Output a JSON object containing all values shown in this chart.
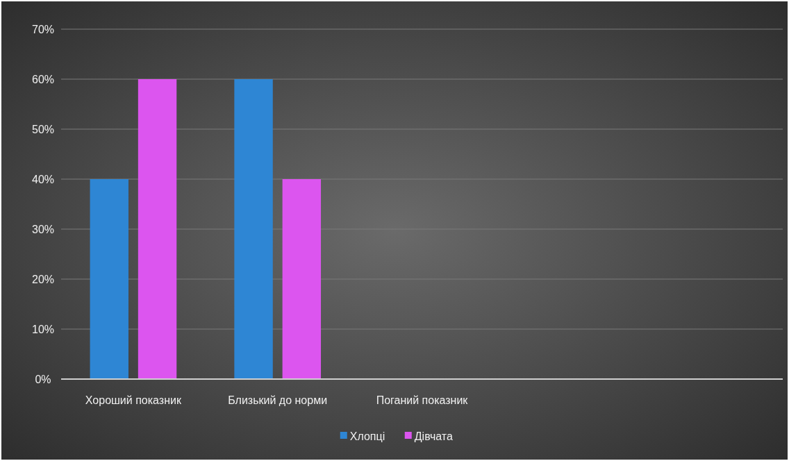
{
  "chart_data": {
    "type": "bar",
    "categories": [
      "Хороший показник",
      "Близький до норми",
      "Поганий показник",
      null,
      null
    ],
    "series": [
      {
        "name": "Хлопці",
        "color": "#2e86d4",
        "values": [
          40,
          60,
          null,
          null,
          null
        ]
      },
      {
        "name": "Дівчата",
        "color": "#dc55ef",
        "values": [
          60,
          40,
          null,
          null,
          null
        ]
      }
    ],
    "ylim": [
      0,
      70
    ],
    "yticks": [
      {
        "value": 0,
        "label": "0%"
      },
      {
        "value": 10,
        "label": "10%"
      },
      {
        "value": 20,
        "label": "20%"
      },
      {
        "value": 30,
        "label": "30%"
      },
      {
        "value": 40,
        "label": "40%"
      },
      {
        "value": 50,
        "label": "50%"
      },
      {
        "value": 60,
        "label": "60%"
      },
      {
        "value": 70,
        "label": "70%"
      }
    ],
    "grid": "y",
    "legend": "bottom"
  }
}
